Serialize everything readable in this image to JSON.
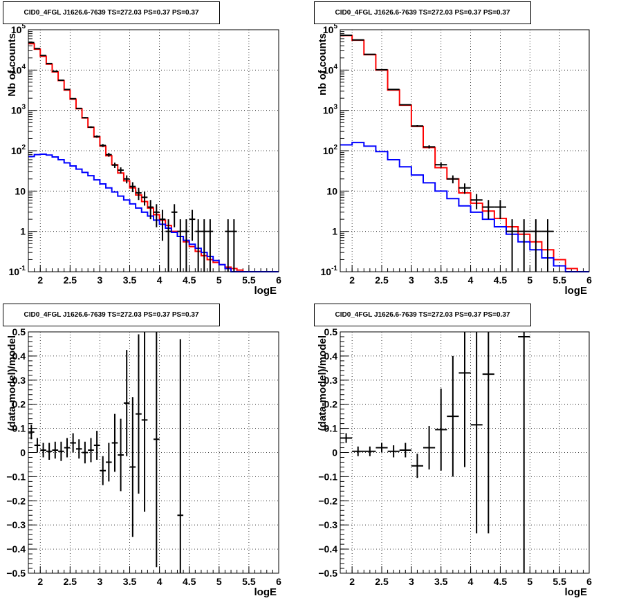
{
  "chart_data": [
    {
      "type": "line",
      "title": "CID0_4FGL J1626.6-7639 TS=272.03 PS=0.37 PS=0.37",
      "xlabel": "logE",
      "ylabel": "Nb of counts",
      "xlim": [
        1.8,
        6.0
      ],
      "ylim": [
        0.1,
        100000
      ],
      "log_y": true,
      "grid": true,
      "x_ticks": [
        "2",
        "2.5",
        "3",
        "3.5",
        "4",
        "4.5",
        "5",
        "5.5",
        "6"
      ],
      "y_ticks": [
        "10^-1",
        "1",
        "10",
        "10^2",
        "10^3",
        "10^4",
        "10^5"
      ],
      "bin_width": 0.1,
      "series": [
        {
          "color": "#ff0000",
          "style": "step",
          "x": [
            1.8,
            1.9,
            2.0,
            2.1,
            2.2,
            2.3,
            2.4,
            2.5,
            2.6,
            2.7,
            2.8,
            2.9,
            3.0,
            3.1,
            3.2,
            3.3,
            3.4,
            3.5,
            3.6,
            3.7,
            3.8,
            3.9,
            4.0,
            4.1,
            4.2,
            4.3,
            4.4,
            4.5,
            4.6,
            4.7,
            4.8,
            4.9,
            5.0,
            5.1,
            5.2,
            5.3,
            5.4,
            5.5,
            5.6,
            5.7,
            5.8,
            5.9
          ],
          "values": [
            45000,
            33000,
            22000,
            14000,
            9000,
            5500,
            3200,
            1900,
            1100,
            650,
            380,
            220,
            130,
            75,
            45,
            28,
            18,
            12,
            8,
            5.5,
            3.8,
            2.6,
            1.9,
            1.4,
            1.0,
            0.75,
            0.55,
            0.42,
            0.32,
            0.25,
            0.2,
            0.17,
            0.15,
            0.13,
            0.12,
            0.11,
            0.1,
            0.1,
            0.1,
            0.1,
            0.1,
            0.1
          ]
        },
        {
          "color": "#0000ff",
          "style": "step",
          "x": [
            1.8,
            1.9,
            2.0,
            2.1,
            2.2,
            2.3,
            2.4,
            2.5,
            2.6,
            2.7,
            2.8,
            2.9,
            3.0,
            3.1,
            3.2,
            3.3,
            3.4,
            3.5,
            3.6,
            3.7,
            3.8,
            3.9,
            4.0,
            4.1,
            4.2,
            4.3,
            4.4,
            4.5,
            4.6,
            4.7,
            4.8,
            4.9,
            5.0,
            5.1,
            5.2,
            5.3,
            5.4,
            5.5,
            5.6,
            5.7,
            5.8,
            5.9
          ],
          "values": [
            72,
            80,
            82,
            78,
            70,
            60,
            50,
            42,
            35,
            29,
            24,
            19,
            15,
            12,
            9.5,
            7.5,
            6,
            4.8,
            3.8,
            3.0,
            2.4,
            1.9,
            1.5,
            1.2,
            0.95,
            0.75,
            0.6,
            0.48,
            0.38,
            0.3,
            0.24,
            0.19,
            0.15,
            0.12,
            0.1,
            0.1,
            0.1,
            0.1,
            0.1,
            0.1,
            0.1,
            0.1
          ]
        },
        {
          "color": "#000000",
          "style": "points",
          "x": [
            1.85,
            1.95,
            2.05,
            2.15,
            2.25,
            2.35,
            2.45,
            2.55,
            2.65,
            2.75,
            2.85,
            2.95,
            3.05,
            3.15,
            3.25,
            3.35,
            3.45,
            3.55,
            3.65,
            3.75,
            3.85,
            3.95,
            4.05,
            4.15,
            4.25,
            4.35,
            4.45,
            4.55,
            4.65,
            4.75,
            4.85,
            5.15,
            5.25
          ],
          "values": [
            48000,
            34000,
            23000,
            14500,
            9300,
            5600,
            3300,
            1950,
            1120,
            660,
            385,
            225,
            135,
            80,
            44,
            33,
            20,
            13,
            9,
            7,
            4,
            3,
            2,
            1,
            3,
            1,
            1,
            2,
            1,
            1,
            1,
            1,
            1
          ]
        }
      ]
    },
    {
      "type": "line",
      "title": "CID0_4FGL J1626.6-7639 TS=272.03 PS=0.37 PS=0.37",
      "xlabel": "logE",
      "ylabel": "nb of counts",
      "xlim": [
        1.8,
        6.0
      ],
      "ylim": [
        0.1,
        100000
      ],
      "log_y": true,
      "grid": true,
      "x_ticks": [
        "2",
        "2.5",
        "3",
        "3.5",
        "4",
        "4.5",
        "5",
        "5.5",
        "6"
      ],
      "y_ticks": [
        "10^-1",
        "1",
        "10",
        "10^2",
        "10^3",
        "10^4",
        "10^5"
      ],
      "bin_width": 0.2,
      "series": [
        {
          "color": "#ff0000",
          "style": "step",
          "x": [
            1.8,
            2.0,
            2.2,
            2.4,
            2.6,
            2.8,
            3.0,
            3.2,
            3.4,
            3.6,
            3.8,
            4.0,
            4.2,
            4.4,
            4.6,
            4.8,
            5.0,
            5.2,
            5.4,
            5.6,
            5.8
          ],
          "values": [
            72000,
            55000,
            24000,
            10000,
            3200,
            1350,
            400,
            120,
            38,
            20,
            9,
            5,
            3.2,
            2.1,
            1.3,
            0.85,
            0.55,
            0.35,
            0.2,
            0.12,
            0.1
          ]
        },
        {
          "color": "#0000ff",
          "style": "step",
          "x": [
            1.8,
            2.0,
            2.2,
            2.4,
            2.6,
            2.8,
            3.0,
            3.2,
            3.4,
            3.6,
            3.8,
            4.0,
            4.2,
            4.4,
            4.6,
            4.8,
            5.0,
            5.2,
            5.4,
            5.6,
            5.8
          ],
          "values": [
            140,
            160,
            130,
            95,
            60,
            40,
            25,
            16,
            10,
            6.5,
            4.3,
            3,
            2,
            1.3,
            0.85,
            0.55,
            0.35,
            0.22,
            0.14,
            0.1,
            0.1
          ]
        },
        {
          "color": "#000000",
          "style": "points",
          "x": [
            1.9,
            2.1,
            2.3,
            2.5,
            2.7,
            2.9,
            3.1,
            3.3,
            3.5,
            3.7,
            3.9,
            4.1,
            4.3,
            4.5,
            4.7,
            4.9,
            5.1,
            5.3
          ],
          "values": [
            73000,
            56000,
            24500,
            10200,
            3300,
            1380,
            410,
            125,
            45,
            20,
            12,
            6,
            4,
            4,
            1,
            1,
            1,
            1
          ]
        }
      ]
    },
    {
      "type": "scatter",
      "title": "CID0_4FGL J1626.6-7639 TS=272.03 PS=0.37 PS=0.37",
      "xlabel": "logE",
      "ylabel": "(data-model)/model",
      "xlim": [
        1.8,
        6.0
      ],
      "ylim": [
        -0.5,
        0.5
      ],
      "grid": true,
      "x_ticks": [
        "2",
        "2.5",
        "3",
        "3.5",
        "4",
        "4.5",
        "5",
        "5.5",
        "6"
      ],
      "y_ticks": [
        "-0.5",
        "-0.4",
        "-0.3",
        "-0.2",
        "-0.1",
        "0",
        "0.1",
        "0.2",
        "0.3",
        "0.4",
        "0.5"
      ],
      "bin_width": 0.1,
      "points": {
        "x": [
          1.85,
          1.95,
          2.05,
          2.15,
          2.25,
          2.35,
          2.45,
          2.55,
          2.65,
          2.75,
          2.85,
          2.95,
          3.05,
          3.15,
          3.25,
          3.35,
          3.45,
          3.55,
          3.65,
          3.75,
          3.95,
          4.35
        ],
        "y": [
          0.085,
          0.03,
          0.01,
          0.005,
          0.01,
          0.005,
          0.02,
          0.04,
          0.015,
          0.0,
          0.01,
          0.03,
          -0.075,
          -0.04,
          0.04,
          -0.01,
          0.205,
          -0.06,
          0.16,
          0.135,
          0.055,
          -0.26
        ],
        "err": [
          0.03,
          0.03,
          0.03,
          0.035,
          0.035,
          0.04,
          0.04,
          0.04,
          0.04,
          0.045,
          0.05,
          0.06,
          0.06,
          0.08,
          0.12,
          0.15,
          0.22,
          0.29,
          0.33,
          0.38,
          0.53,
          0.73
        ]
      }
    },
    {
      "type": "scatter",
      "title": "CID0_4FGL J1626.6-7639 TS=272.03 PS=0.37 PS=0.37",
      "xlabel": "logE",
      "ylabel": "(data-model)/model",
      "xlim": [
        1.8,
        6.0
      ],
      "ylim": [
        -0.5,
        0.5
      ],
      "grid": true,
      "x_ticks": [
        "2",
        "2.5",
        "3",
        "3.5",
        "4",
        "4.5",
        "5",
        "5.5",
        "6"
      ],
      "y_ticks": [
        "-0.5",
        "-0.4",
        "-0.3",
        "-0.2",
        "-0.1",
        "0",
        "0.1",
        "0.2",
        "0.3",
        "0.4",
        "0.5"
      ],
      "bin_width": 0.2,
      "points": {
        "x": [
          1.9,
          2.1,
          2.3,
          2.5,
          2.7,
          2.9,
          3.1,
          3.3,
          3.5,
          3.7,
          3.9,
          4.1,
          4.3,
          4.9
        ],
        "y": [
          0.06,
          0.005,
          0.005,
          0.02,
          0.005,
          0.01,
          -0.055,
          0.02,
          0.095,
          0.15,
          0.33,
          0.115,
          0.325,
          0.48
        ],
        "err": [
          0.02,
          0.02,
          0.02,
          0.02,
          0.025,
          0.03,
          0.05,
          0.09,
          0.17,
          0.25,
          0.39,
          0.45,
          0.66,
          0.98
        ]
      }
    }
  ]
}
